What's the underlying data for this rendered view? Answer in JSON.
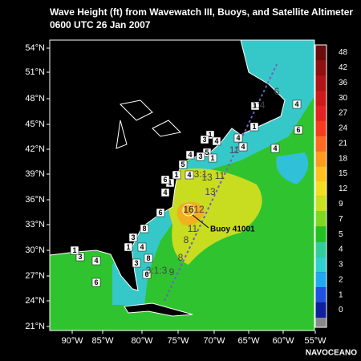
{
  "header": {
    "title": "Wave Height (ft) from Wavewatch III, Buoys, and Satellite Altimeter",
    "subtitle": "0600 UTC 26 Jan 2007"
  },
  "map": {
    "latitude_labels": [
      "54°N",
      "51°N",
      "48°N",
      "45°N",
      "42°N",
      "39°N",
      "36°N",
      "33°N",
      "30°N",
      "27°N",
      "24°N",
      "21°N"
    ],
    "longitude_labels": [
      "90°W",
      "85°W",
      "80°W",
      "75°W",
      "70°W",
      "65°W",
      "60°W",
      "55°W"
    ],
    "buoy_reports": [
      "1",
      "4",
      "1",
      "4",
      "6",
      "4",
      "1",
      "3",
      "5",
      "1",
      "3",
      "4",
      "5",
      "1",
      "1",
      "6",
      "4",
      "4",
      "4",
      "6",
      "3",
      "1",
      "4",
      "3",
      "8",
      "1",
      "3",
      "4",
      "6",
      "8",
      "6",
      "4"
    ],
    "altimeter_labels": [
      "6",
      "1:4",
      "11",
      "3:1",
      "13",
      "11",
      "13",
      "12",
      "11",
      "8",
      "8",
      "9",
      "3:1:3"
    ],
    "highlight": {
      "value": "16",
      "label": "Buoy 41001"
    }
  },
  "colorbar": {
    "levels": [
      48,
      42,
      36,
      30,
      27,
      24,
      21,
      18,
      15,
      12,
      9,
      7,
      5,
      4,
      3,
      2,
      1,
      0
    ],
    "colors": [
      "#6a0c0c",
      "#8e1010",
      "#b01414",
      "#cc1a1a",
      "#e42222",
      "#f83a20",
      "#ff6a20",
      "#ff9a20",
      "#ffc020",
      "#f2de20",
      "#c8e020",
      "#7ed820",
      "#22c022",
      "#30cc9a",
      "#30d0d0",
      "#20a8f0",
      "#2050e0",
      "#10209a"
    ]
  },
  "footer": {
    "credit": "NAVOCEANO"
  }
}
